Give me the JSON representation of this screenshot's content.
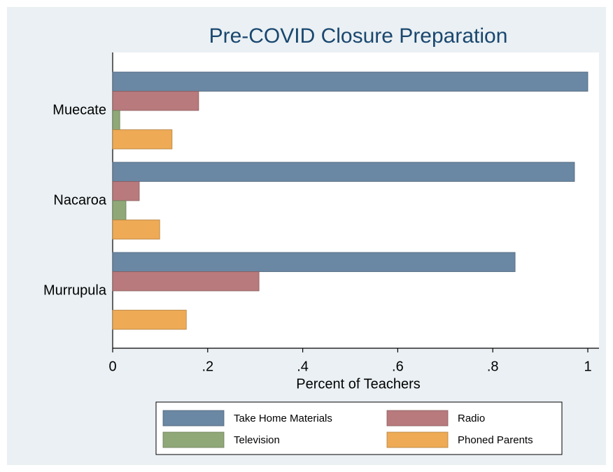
{
  "chart_data": {
    "type": "hbar",
    "title": "Pre-COVID Closure Preparation",
    "x_label": "Percent of Teachers",
    "categories": [
      "Muecate",
      "Nacaroa",
      "Murrupula"
    ],
    "series": [
      {
        "name": "Take Home Materials",
        "color": "#6a87a3",
        "values": [
          1.0,
          0.972,
          0.847
        ]
      },
      {
        "name": "Radio",
        "color": "#b87a7d",
        "values": [
          0.181,
          0.056,
          0.308
        ]
      },
      {
        "name": "Television",
        "color": "#90a878",
        "values": [
          0.015,
          0.028,
          0
        ]
      },
      {
        "name": "Phoned Parents",
        "color": "#eeaa55",
        "values": [
          0.125,
          0.099,
          0.155
        ]
      }
    ],
    "xlim": [
      0,
      1
    ],
    "xticks": [
      0,
      {
        "value": 0.2,
        "label": ".2"
      },
      {
        "value": 0.4,
        "label": ".4"
      },
      {
        "value": 0.6,
        "label": ".6"
      },
      {
        "value": 0.8,
        "label": ".8"
      },
      1
    ],
    "grid": false
  }
}
